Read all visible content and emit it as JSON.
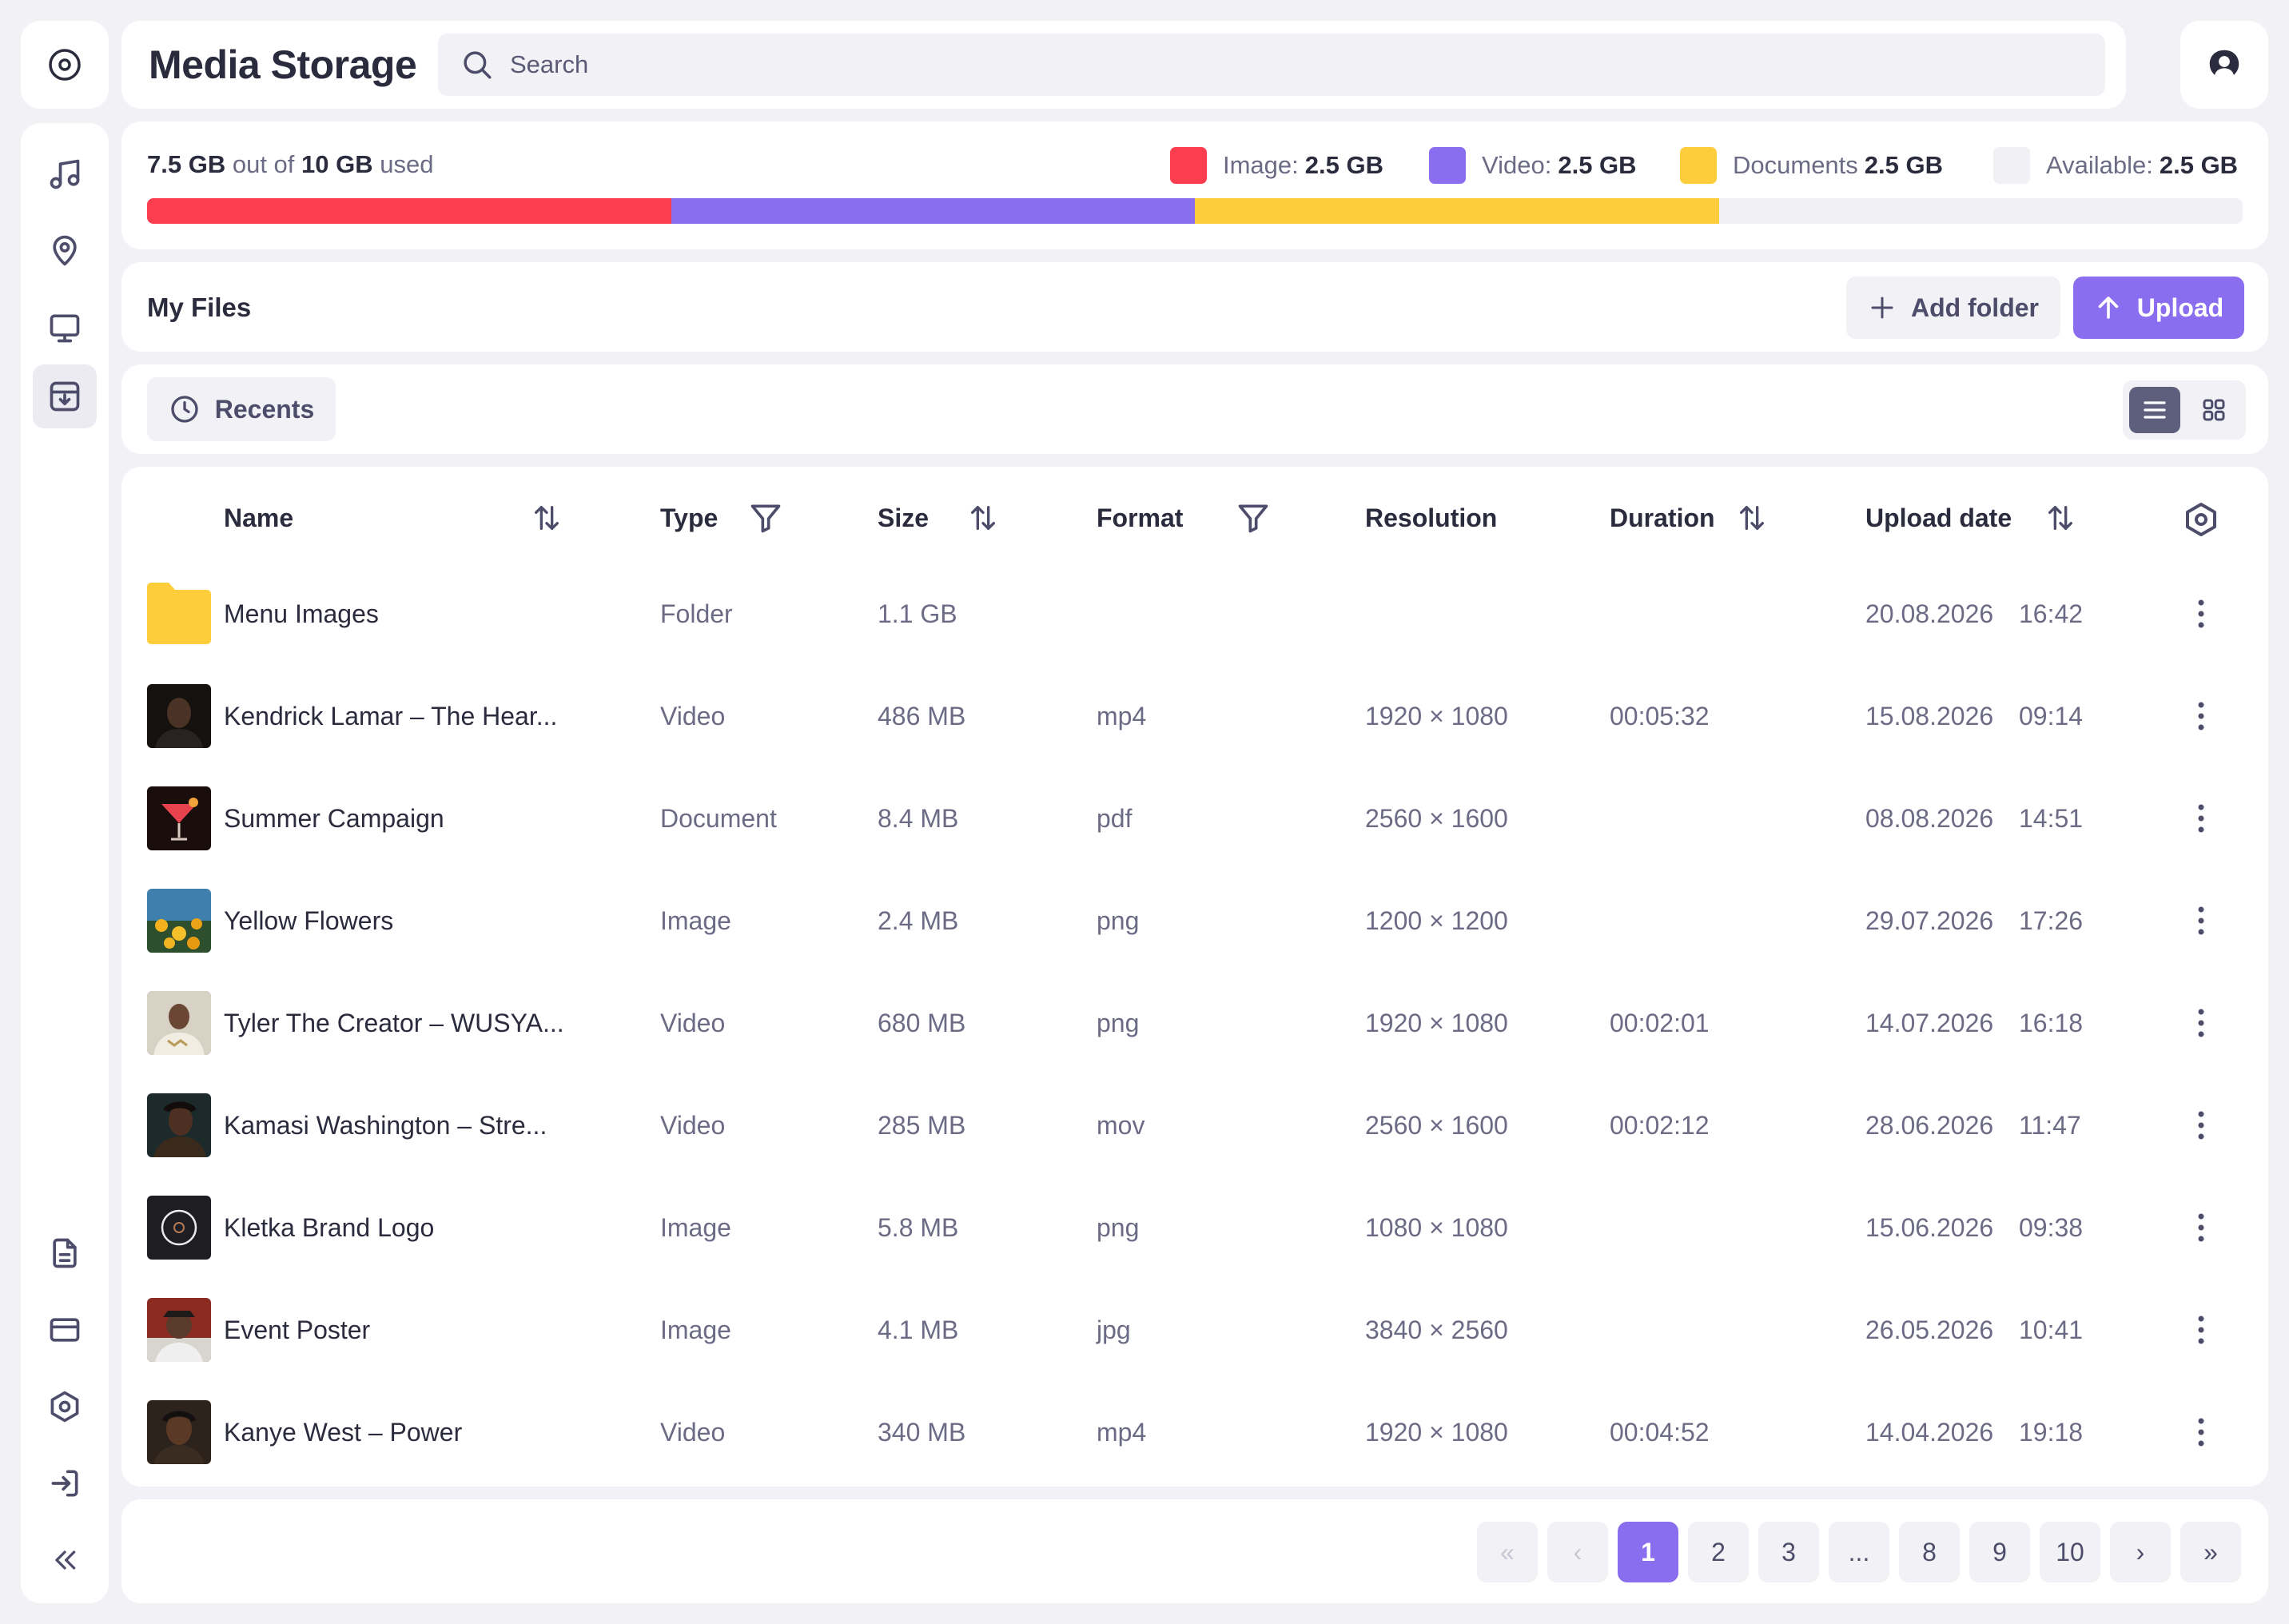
{
  "app": {
    "title": "Media Storage"
  },
  "search": {
    "placeholder": "Search",
    "value": ""
  },
  "storage": {
    "used": "7.5 GB",
    "out_of_text": "out of",
    "total": "10 GB",
    "used_text": "used",
    "used_fraction": 0.75,
    "legend": [
      {
        "label": "Image:",
        "value": "2.5 GB",
        "color": "#fc3d4f",
        "fraction": 0.25
      },
      {
        "label": "Video:",
        "value": "2.5 GB",
        "color": "#8b6ef0",
        "fraction": 0.25
      },
      {
        "label": "Documents",
        "value": "2.5 GB",
        "color": "#fdcd3c",
        "fraction": 0.25
      },
      {
        "label": "Available:",
        "value": "2.5 GB",
        "color": "#f1f1f5",
        "fraction": 0.25
      }
    ]
  },
  "my_files": {
    "title": "My Files",
    "add_folder_label": "Add folder",
    "upload_label": "Upload",
    "accent_color": "#8b6ef0"
  },
  "recents": {
    "label": "Recents",
    "view_mode": "list"
  },
  "table": {
    "headers": {
      "name": "Name",
      "type": "Type",
      "size": "Size",
      "format": "Format",
      "resolution": "Resolution",
      "duration": "Duration",
      "upload_date": "Upload date"
    },
    "rows": [
      {
        "name": "Menu Images",
        "type": "Folder",
        "size": "1.1 GB",
        "format": "",
        "resolution": "",
        "duration": "",
        "date": "20.08.2026",
        "time": "16:42",
        "thumb": "folder-icon"
      },
      {
        "name": "Kendrick Lamar – The Hear...",
        "type": "Video",
        "size": "486 MB",
        "format": "mp4",
        "resolution": "1920 × 1080",
        "duration": "00:05:32",
        "date": "15.08.2026",
        "time": "09:14",
        "thumb": "portrait-thumbnail"
      },
      {
        "name": "Summer Campaign",
        "type": "Document",
        "size": "8.4 MB",
        "format": "pdf",
        "resolution": "2560 × 1600",
        "duration": "",
        "date": "08.08.2026",
        "time": "14:51",
        "thumb": "cocktail-thumbnail"
      },
      {
        "name": "Yellow Flowers",
        "type": "Image",
        "size": "2.4 MB",
        "format": "png",
        "resolution": "1200 × 1200",
        "duration": "",
        "date": "29.07.2026",
        "time": "17:26",
        "thumb": "flowers-thumbnail"
      },
      {
        "name": "Tyler The Creator – WUSYA...",
        "type": "Video",
        "size": "680 MB",
        "format": "png",
        "resolution": "1920 × 1080",
        "duration": "00:02:01",
        "date": "14.07.2026",
        "time": "16:18",
        "thumb": "portrait-thumbnail"
      },
      {
        "name": "Kamasi Washington –  Stre...",
        "type": "Video",
        "size": "285 MB",
        "format": "mov",
        "resolution": "2560 × 1600",
        "duration": "00:02:12",
        "date": "28.06.2026",
        "time": "11:47",
        "thumb": "portrait-thumbnail"
      },
      {
        "name": "Kletka Brand Logo",
        "type": "Image",
        "size": "5.8 MB",
        "format": "png",
        "resolution": "1080 × 1080",
        "duration": "",
        "date": "15.06.2026",
        "time": "09:38",
        "thumb": "logo-thumbnail"
      },
      {
        "name": "Event Poster",
        "type": "Image",
        "size": "4.1 MB",
        "format": "jpg",
        "resolution": "3840 × 2560",
        "duration": "",
        "date": "26.05.2026",
        "time": "10:41",
        "thumb": "portrait-thumbnail"
      },
      {
        "name": "Kanye West – Power",
        "type": "Video",
        "size": "340 MB",
        "format": "mp4",
        "resolution": "1920 × 1080",
        "duration": "00:04:52",
        "date": "14.04.2026",
        "time": "19:18",
        "thumb": "portrait-thumbnail"
      }
    ]
  },
  "pagination": {
    "first": "«",
    "prev": "‹",
    "pages": [
      "1",
      "2",
      "3",
      "...",
      "8",
      "9",
      "10"
    ],
    "next": "›",
    "last": "»",
    "current": "1"
  },
  "sidebar": {
    "top_items": [
      "music-icon",
      "location-pin-icon",
      "monitor-icon",
      "inbox-download-icon"
    ],
    "active": "inbox-download-icon",
    "bottom_items": [
      "document-icon",
      "credit-card-icon",
      "settings-hexagon-icon",
      "logout-icon",
      "collapse-icon"
    ]
  }
}
